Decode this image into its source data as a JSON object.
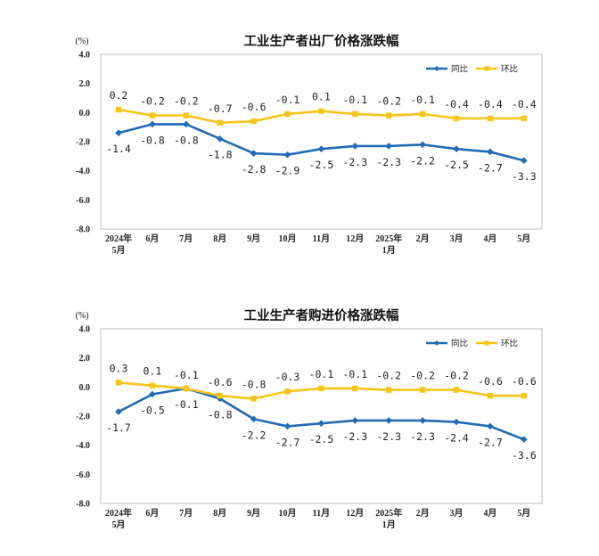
{
  "chart_data": [
    {
      "type": "line",
      "title": "工业生产者出厂价格涨跌幅",
      "unit": "(%)",
      "categories": [
        [
          "2024年",
          "5月"
        ],
        [
          "6月"
        ],
        [
          "7月"
        ],
        [
          "8月"
        ],
        [
          "9月"
        ],
        [
          "10月"
        ],
        [
          "11月"
        ],
        [
          "12月"
        ],
        [
          "2025年",
          "1月"
        ],
        [
          "2月"
        ],
        [
          "3月"
        ],
        [
          "4月"
        ],
        [
          "5月"
        ]
      ],
      "ylim": [
        -8.0,
        4.0
      ],
      "yticks": [
        "4.0",
        "2.0",
        "0.0",
        "-2.0",
        "-4.0",
        "-6.0",
        "-8.0"
      ],
      "grid": false,
      "legend_position": "top-right",
      "series": [
        {
          "name": "同比",
          "color": "#1f6bb5",
          "values": [
            -1.4,
            -0.8,
            -0.8,
            -1.8,
            -2.8,
            -2.9,
            -2.5,
            -2.3,
            -2.3,
            -2.2,
            -2.5,
            -2.7,
            -3.3
          ],
          "labels": [
            "-1.4",
            "-0.8",
            "-0.8",
            "-1.8",
            "-2.8",
            "-2.9",
            "-2.5",
            "-2.3",
            "-2.3",
            "-2.2",
            "-2.5",
            "-2.7",
            "-3.3"
          ]
        },
        {
          "name": "环比",
          "color": "#f5c518",
          "values": [
            0.2,
            -0.2,
            -0.2,
            -0.7,
            -0.6,
            -0.1,
            0.1,
            -0.1,
            -0.2,
            -0.1,
            -0.4,
            -0.4,
            -0.4
          ],
          "labels": [
            "0.2",
            "-0.2",
            "-0.2",
            "-0.7",
            "-0.6",
            "-0.1",
            "0.1",
            "-0.1",
            "-0.2",
            "-0.1",
            "-0.4",
            "-0.4",
            "-0.4"
          ]
        }
      ]
    },
    {
      "type": "line",
      "title": "工业生产者购进价格涨跌幅",
      "unit": "(%)",
      "categories": [
        [
          "2024年",
          "5月"
        ],
        [
          "6月"
        ],
        [
          "7月"
        ],
        [
          "8月"
        ],
        [
          "9月"
        ],
        [
          "10月"
        ],
        [
          "11月"
        ],
        [
          "12月"
        ],
        [
          "2025年",
          "1月"
        ],
        [
          "2月"
        ],
        [
          "3月"
        ],
        [
          "4月"
        ],
        [
          "5月"
        ]
      ],
      "ylim": [
        -8.0,
        4.0
      ],
      "yticks": [
        "4.0",
        "2.0",
        "0.0",
        "-2.0",
        "-4.0",
        "-6.0",
        "-8.0"
      ],
      "grid": false,
      "legend_position": "top-right",
      "series": [
        {
          "name": "同比",
          "color": "#1f6bb5",
          "values": [
            -1.7,
            -0.5,
            -0.1,
            -0.8,
            -2.2,
            -2.7,
            -2.5,
            -2.3,
            -2.3,
            -2.3,
            -2.4,
            -2.7,
            -3.6
          ],
          "labels": [
            "-1.7",
            "-0.5",
            "-0.1",
            "-0.8",
            "-2.2",
            "-2.7",
            "-2.5",
            "-2.3",
            "-2.3",
            "-2.3",
            "-2.4",
            "-2.7",
            "-3.6"
          ]
        },
        {
          "name": "环比",
          "color": "#f5c518",
          "values": [
            0.3,
            0.1,
            -0.1,
            -0.6,
            -0.8,
            -0.3,
            -0.1,
            -0.1,
            -0.2,
            -0.2,
            -0.2,
            -0.6,
            -0.6
          ],
          "labels": [
            "0.3",
            "0.1",
            "-0.1",
            "-0.6",
            "-0.8",
            "-0.3",
            "-0.1",
            "-0.1",
            "-0.2",
            "-0.2",
            "-0.2",
            "-0.6",
            "-0.6"
          ]
        }
      ]
    }
  ]
}
